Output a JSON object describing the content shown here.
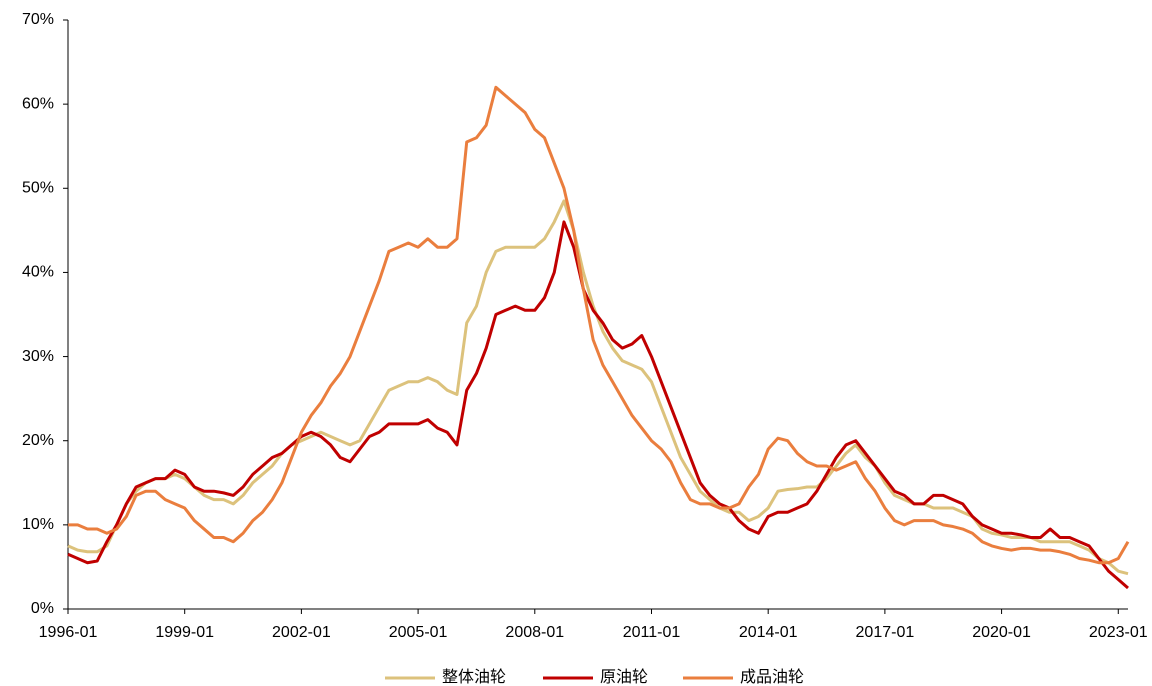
{
  "chart_data": {
    "type": "line",
    "x": [
      "1996-01",
      "1996-04",
      "1996-07",
      "1996-10",
      "1997-01",
      "1997-04",
      "1997-07",
      "1997-10",
      "1998-01",
      "1998-04",
      "1998-07",
      "1998-10",
      "1999-01",
      "1999-04",
      "1999-07",
      "1999-10",
      "2000-01",
      "2000-04",
      "2000-07",
      "2000-10",
      "2001-01",
      "2001-04",
      "2001-07",
      "2001-10",
      "2002-01",
      "2002-04",
      "2002-07",
      "2002-10",
      "2003-01",
      "2003-04",
      "2003-07",
      "2003-10",
      "2004-01",
      "2004-04",
      "2004-07",
      "2004-10",
      "2005-01",
      "2005-04",
      "2005-07",
      "2005-10",
      "2006-01",
      "2006-04",
      "2006-07",
      "2006-10",
      "2007-01",
      "2007-04",
      "2007-07",
      "2007-10",
      "2008-01",
      "2008-04",
      "2008-07",
      "2008-10",
      "2009-01",
      "2009-04",
      "2009-07",
      "2009-10",
      "2010-01",
      "2010-04",
      "2010-07",
      "2010-10",
      "2011-01",
      "2011-04",
      "2011-07",
      "2011-10",
      "2012-01",
      "2012-04",
      "2012-07",
      "2012-10",
      "2013-01",
      "2013-04",
      "2013-07",
      "2013-10",
      "2014-01",
      "2014-04",
      "2014-07",
      "2014-10",
      "2015-01",
      "2015-04",
      "2015-07",
      "2015-10",
      "2016-01",
      "2016-04",
      "2016-07",
      "2016-10",
      "2017-01",
      "2017-04",
      "2017-07",
      "2017-10",
      "2018-01",
      "2018-04",
      "2018-07",
      "2018-10",
      "2019-01",
      "2019-04",
      "2019-07",
      "2019-10",
      "2020-01",
      "2020-04",
      "2020-07",
      "2020-10",
      "2021-01",
      "2021-04",
      "2021-07",
      "2021-10",
      "2022-01",
      "2022-04",
      "2022-07",
      "2022-10",
      "2023-01",
      "2023-04"
    ],
    "series": [
      {
        "name": "整体油轮",
        "color": "#dcc27c",
        "values": [
          7.5,
          7,
          6.8,
          6.8,
          7.5,
          10,
          12.5,
          14,
          15,
          15.5,
          15.5,
          16,
          15.5,
          14.5,
          13.5,
          13,
          13,
          12.5,
          13.5,
          15,
          16,
          17,
          18.5,
          19.5,
          20,
          20.5,
          21,
          20.5,
          20,
          19.5,
          20,
          22,
          24,
          26,
          26.5,
          27,
          27,
          27.5,
          27,
          26,
          25.5,
          34,
          36,
          40,
          42.5,
          43,
          43,
          43,
          43,
          44,
          46,
          48.5,
          45,
          40,
          36,
          33,
          31,
          29.5,
          29,
          28.5,
          27,
          24,
          21,
          18,
          16,
          14,
          13,
          12,
          11.5,
          11.5,
          10.5,
          11,
          12,
          14,
          14.2,
          14.3,
          14.5,
          14.5,
          15.5,
          17,
          18.5,
          19.5,
          18,
          17,
          15,
          13.5,
          13,
          12.5,
          12.5,
          12,
          12,
          12,
          11.5,
          11,
          9.5,
          9,
          8.8,
          8.5,
          8.5,
          8.5,
          8,
          8,
          8,
          8,
          7.5,
          7,
          6,
          5.5,
          4.5,
          4.2
        ]
      },
      {
        "name": "原油轮",
        "color": "#c00000",
        "values": [
          6.5,
          6,
          5.5,
          5.7,
          8,
          10,
          12.5,
          14.5,
          15,
          15.5,
          15.5,
          16.5,
          16,
          14.5,
          14,
          14,
          13.8,
          13.5,
          14.5,
          16,
          17,
          18,
          18.5,
          19.5,
          20.5,
          21,
          20.5,
          19.5,
          18,
          17.5,
          19,
          20.5,
          21,
          22,
          22,
          22,
          22,
          22.5,
          21.5,
          21,
          19.5,
          26,
          28,
          31,
          35,
          35.5,
          36,
          35.5,
          35.5,
          37,
          40,
          46,
          43,
          38,
          35.5,
          34,
          32,
          31,
          31.5,
          32.5,
          30,
          27,
          24,
          21,
          18,
          15,
          13.5,
          12.5,
          12,
          10.5,
          9.5,
          9,
          11,
          11.5,
          11.5,
          12,
          12.5,
          14,
          16,
          18,
          19.5,
          20,
          18.5,
          17,
          15.5,
          14,
          13.5,
          12.5,
          12.5,
          13.5,
          13.5,
          13,
          12.5,
          11,
          10,
          9.5,
          9,
          9,
          8.8,
          8.5,
          8.5,
          9.5,
          8.5,
          8.5,
          8,
          7.5,
          6,
          4.5,
          3.5,
          2.5
        ]
      },
      {
        "name": "成品油轮",
        "color": "#ea7e3e",
        "values": [
          10,
          10,
          9.5,
          9.5,
          9,
          9.5,
          11,
          13.5,
          14,
          14,
          13,
          12.5,
          12,
          10.5,
          9.5,
          8.5,
          8.5,
          8,
          9,
          10.5,
          11.5,
          13,
          15,
          18,
          21,
          23,
          24.5,
          26.5,
          28,
          30,
          33,
          36,
          39,
          42.5,
          43,
          43.5,
          43,
          44,
          43,
          43,
          44,
          55.5,
          56,
          57.5,
          62,
          61,
          60,
          59,
          57,
          56,
          53,
          50,
          45,
          38,
          32,
          29,
          27,
          25,
          23,
          21.5,
          20,
          19,
          17.5,
          15,
          13,
          12.5,
          12.5,
          12,
          12,
          12.5,
          14.5,
          16,
          19,
          20.3,
          20,
          18.5,
          17.5,
          17,
          17,
          16.5,
          17,
          17.5,
          15.5,
          14,
          12,
          10.5,
          10,
          10.5,
          10.5,
          10.5,
          10,
          9.8,
          9.5,
          9,
          8,
          7.5,
          7.2,
          7,
          7.2,
          7.2,
          7,
          7,
          6.8,
          6.5,
          6,
          5.8,
          5.5,
          5.5,
          6,
          8
        ]
      }
    ],
    "xlim": [
      "1996-01",
      "2023-04"
    ],
    "xticks": [
      "1996-01",
      "1999-01",
      "2002-01",
      "2005-01",
      "2008-01",
      "2011-01",
      "2014-01",
      "2017-01",
      "2020-01",
      "2023-01"
    ],
    "ylim": [
      0,
      70
    ],
    "yticks": [
      {
        "value": 0,
        "label": "0%"
      },
      {
        "value": 10,
        "label": "10%"
      },
      {
        "value": 20,
        "label": "20%"
      },
      {
        "value": 30,
        "label": "30%"
      },
      {
        "value": 40,
        "label": "40%"
      },
      {
        "value": 50,
        "label": "50%"
      },
      {
        "value": 60,
        "label": "60%"
      },
      {
        "value": 70,
        "label": "70%"
      }
    ],
    "legend": "bottom",
    "grid": false
  }
}
